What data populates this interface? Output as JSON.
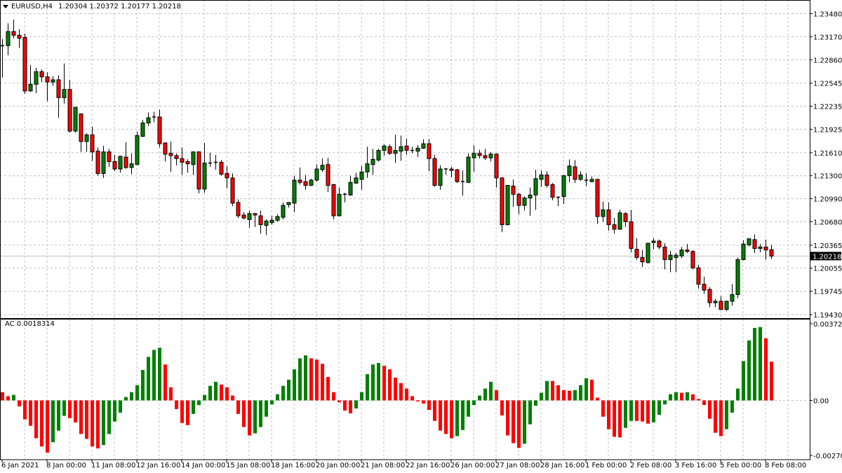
{
  "header": {
    "symbol": "EURUSD,H4",
    "ohlc": "1.20304 1.20372 1.20177 1.20218",
    "menu_icon": "triangle-down-icon"
  },
  "colors": {
    "bull": "#008000",
    "bear": "#ff0000",
    "grid": "#c0c0c0",
    "price_line": "#c0c0c0",
    "price_box": "#000000"
  },
  "chart_data": [
    {
      "type": "candlestick",
      "title": "EURUSD,H4",
      "timeframe": "H4",
      "last_price": "1.20218",
      "y_tick_labels": [
        "1.23480",
        "1.23170",
        "1.22860",
        "1.22545",
        "1.22235",
        "1.21925",
        "1.21610",
        "1.21300",
        "1.20990",
        "1.20680",
        "1.20365",
        "1.20055",
        "1.19745",
        "1.19430"
      ],
      "ylim": [
        1.1943,
        1.2348
      ],
      "x_tick_labels": [
        "6 Jan 2021",
        "8 Jan 00:00",
        "11 Jan 08:00",
        "12 Jan 16:00",
        "14 Jan 00:00",
        "15 Jan 08:00",
        "18 Jan 16:00",
        "20 Jan 00:00",
        "21 Jan 08:00",
        "22 Jan 16:00",
        "26 Jan 00:00",
        "27 Jan 08:00",
        "28 Jan 16:00",
        "1 Feb 00:00",
        "2 Feb 08:00",
        "3 Feb 16:00",
        "5 Feb 00:00",
        "8 Feb 08:00"
      ],
      "grid": true,
      "ohlc_fields": [
        "open",
        "high",
        "low",
        "close"
      ],
      "candles": [
        [
          1.2305,
          1.2314,
          1.2262,
          1.2305
        ],
        [
          1.2305,
          1.2335,
          1.2292,
          1.2324
        ],
        [
          1.2324,
          1.234,
          1.2315,
          1.2319
        ],
        [
          1.2319,
          1.2327,
          1.2302,
          1.2315
        ],
        [
          1.2316,
          1.2321,
          1.224,
          1.2244
        ],
        [
          1.2244,
          1.2279,
          1.2243,
          1.2253
        ],
        [
          1.2253,
          1.2275,
          1.2241,
          1.227
        ],
        [
          1.227,
          1.2273,
          1.2256,
          1.2263
        ],
        [
          1.2263,
          1.2269,
          1.223,
          1.2256
        ],
        [
          1.2256,
          1.2264,
          1.2251,
          1.2259
        ],
        [
          1.2259,
          1.2265,
          1.2208,
          1.2235
        ],
        [
          1.2235,
          1.2281,
          1.2227,
          1.2246
        ],
        [
          1.2246,
          1.2259,
          1.2188,
          1.219
        ],
        [
          1.219,
          1.2222,
          1.2188,
          1.2222
        ],
        [
          1.2213,
          1.2214,
          1.2162,
          1.2176
        ],
        [
          1.2176,
          1.2187,
          1.2162,
          1.2185
        ],
        [
          1.2185,
          1.2196,
          1.215,
          1.2162
        ],
        [
          1.2163,
          1.2168,
          1.213,
          1.2133
        ],
        [
          1.2133,
          1.217,
          1.2127,
          1.2162
        ],
        [
          1.2162,
          1.2166,
          1.2142,
          1.2149
        ],
        [
          1.2149,
          1.2158,
          1.2136,
          1.2139
        ],
        [
          1.2139,
          1.2157,
          1.2134,
          1.2156
        ],
        [
          1.2155,
          1.2175,
          1.2139,
          1.2141
        ],
        [
          1.2141,
          1.216,
          1.2132,
          1.2146
        ],
        [
          1.2145,
          1.2189,
          1.2145,
          1.2184
        ],
        [
          1.2183,
          1.2205,
          1.2182,
          1.2201
        ],
        [
          1.2201,
          1.2215,
          1.2197,
          1.2208
        ],
        [
          1.2208,
          1.2216,
          1.2202,
          1.2209
        ],
        [
          1.2209,
          1.2219,
          1.2168,
          1.2173
        ],
        [
          1.2174,
          1.2175,
          1.2149,
          1.2159
        ],
        [
          1.216,
          1.2176,
          1.2135,
          1.2157
        ],
        [
          1.2157,
          1.216,
          1.2144,
          1.2153
        ],
        [
          1.2153,
          1.2168,
          1.2131,
          1.2148
        ],
        [
          1.2149,
          1.2152,
          1.2134,
          1.2146
        ],
        [
          1.2145,
          1.2163,
          1.2131,
          1.2162
        ],
        [
          1.2162,
          1.2163,
          1.2106,
          1.2112
        ],
        [
          1.2112,
          1.2174,
          1.2107,
          1.2147
        ],
        [
          1.2147,
          1.2161,
          1.2142,
          1.2146
        ],
        [
          1.2148,
          1.2158,
          1.2138,
          1.2147
        ],
        [
          1.2148,
          1.2151,
          1.213,
          1.2132
        ],
        [
          1.2133,
          1.2143,
          1.2113,
          1.2127
        ],
        [
          1.2127,
          1.2133,
          1.2089,
          1.2093
        ],
        [
          1.2094,
          1.2098,
          1.2073,
          1.2076
        ],
        [
          1.2077,
          1.2081,
          1.2071,
          1.2073
        ],
        [
          1.2071,
          1.2083,
          1.206,
          1.2079
        ],
        [
          1.2079,
          1.208,
          1.2061,
          1.2077
        ],
        [
          1.2076,
          1.2083,
          1.2052,
          1.2064
        ],
        [
          1.2063,
          1.2071,
          1.205,
          1.2069
        ],
        [
          1.2067,
          1.2076,
          1.2064,
          1.207
        ],
        [
          1.207,
          1.2078,
          1.2068,
          1.2075
        ],
        [
          1.2074,
          1.2094,
          1.2071,
          1.209
        ],
        [
          1.2091,
          1.2094,
          1.2087,
          1.2094
        ],
        [
          1.2093,
          1.213,
          1.2081,
          1.2124
        ],
        [
          1.2124,
          1.2141,
          1.2118,
          1.2121
        ],
        [
          1.2122,
          1.2131,
          1.2111,
          1.2117
        ],
        [
          1.2117,
          1.2126,
          1.2116,
          1.2124
        ],
        [
          1.2124,
          1.2145,
          1.2122,
          1.2139
        ],
        [
          1.2138,
          1.2153,
          1.2135,
          1.2144
        ],
        [
          1.2145,
          1.2154,
          1.2108,
          1.2117
        ],
        [
          1.2118,
          1.2119,
          1.2071,
          1.2076
        ],
        [
          1.2076,
          1.2114,
          1.2075,
          1.2105
        ],
        [
          1.2105,
          1.2107,
          1.2094,
          1.2104
        ],
        [
          1.2104,
          1.213,
          1.2103,
          1.2121
        ],
        [
          1.212,
          1.2134,
          1.2119,
          1.2127
        ],
        [
          1.2125,
          1.2143,
          1.2111,
          1.2135
        ],
        [
          1.2135,
          1.2169,
          1.2127,
          1.2146
        ],
        [
          1.2145,
          1.2166,
          1.2131,
          1.2152
        ],
        [
          1.2151,
          1.2166,
          1.2149,
          1.2164
        ],
        [
          1.2164,
          1.2172,
          1.2157,
          1.217
        ],
        [
          1.2169,
          1.2172,
          1.2158,
          1.216
        ],
        [
          1.216,
          1.2185,
          1.2147,
          1.2164
        ],
        [
          1.2163,
          1.2184,
          1.215,
          1.2169
        ],
        [
          1.217,
          1.218,
          1.2158,
          1.2164
        ],
        [
          1.2164,
          1.2169,
          1.216,
          1.2163
        ],
        [
          1.2163,
          1.2171,
          1.2155,
          1.2167
        ],
        [
          1.2167,
          1.2179,
          1.2166,
          1.2173
        ],
        [
          1.2173,
          1.2179,
          1.2136,
          1.2153
        ],
        [
          1.2153,
          1.2158,
          1.2115,
          1.2117
        ],
        [
          1.2117,
          1.2144,
          1.2111,
          1.2139
        ],
        [
          1.2139,
          1.214,
          1.2131,
          1.2139
        ],
        [
          1.2139,
          1.2142,
          1.2128,
          1.2137
        ],
        [
          1.2138,
          1.2139,
          1.212,
          1.2122
        ],
        [
          1.2122,
          1.2137,
          1.2103,
          1.2122
        ],
        [
          1.2121,
          1.216,
          1.212,
          1.2155
        ],
        [
          1.2154,
          1.2171,
          1.2135,
          1.216
        ],
        [
          1.216,
          1.2165,
          1.2153,
          1.2157
        ],
        [
          1.2157,
          1.2166,
          1.2151,
          1.2154
        ],
        [
          1.2154,
          1.2162,
          1.2149,
          1.2159
        ],
        [
          1.2159,
          1.216,
          1.2114,
          1.2127
        ],
        [
          1.2127,
          1.2128,
          1.2054,
          1.2064
        ],
        [
          1.2064,
          1.2117,
          1.2063,
          1.2117
        ],
        [
          1.2116,
          1.2125,
          1.2088,
          1.2105
        ],
        [
          1.2105,
          1.2107,
          1.2078,
          1.209
        ],
        [
          1.209,
          1.2102,
          1.2083,
          1.21
        ],
        [
          1.21,
          1.2114,
          1.2076,
          1.2104
        ],
        [
          1.2104,
          1.2138,
          1.2084,
          1.2126
        ],
        [
          1.2125,
          1.2137,
          1.2115,
          1.2131
        ],
        [
          1.2131,
          1.2136,
          1.2114,
          1.2117
        ],
        [
          1.2118,
          1.212,
          1.2097,
          1.2101
        ],
        [
          1.2101,
          1.2102,
          1.2089,
          1.2101
        ],
        [
          1.2102,
          1.2131,
          1.2092,
          1.213
        ],
        [
          1.213,
          1.2152,
          1.2121,
          1.2143
        ],
        [
          1.2142,
          1.2151,
          1.212,
          1.2125
        ],
        [
          1.2125,
          1.2136,
          1.2123,
          1.2131
        ],
        [
          1.2124,
          1.2133,
          1.2116,
          1.2124
        ],
        [
          1.2122,
          1.2129,
          1.2121,
          1.2125
        ],
        [
          1.2125,
          1.2126,
          1.2065,
          1.2075
        ],
        [
          1.2075,
          1.2095,
          1.2068,
          1.2084
        ],
        [
          1.2084,
          1.2094,
          1.2056,
          1.2064
        ],
        [
          1.2064,
          1.2073,
          1.2052,
          1.2058
        ],
        [
          1.2058,
          1.2084,
          1.2057,
          1.208
        ],
        [
          1.2079,
          1.2081,
          1.2061,
          1.2068
        ],
        [
          1.2068,
          1.2084,
          1.2027,
          1.2032
        ],
        [
          1.2031,
          1.2046,
          1.2017,
          1.202
        ],
        [
          1.202,
          1.203,
          1.2007,
          1.2014
        ],
        [
          1.2013,
          1.204,
          1.2012,
          1.2039
        ],
        [
          1.204,
          1.2046,
          1.2031,
          1.2042
        ],
        [
          1.2042,
          1.2044,
          1.2031,
          1.2034
        ],
        [
          1.2034,
          1.2039,
          1.2004,
          1.2017
        ],
        [
          1.2017,
          1.2029,
          1.2,
          1.2023
        ],
        [
          1.202,
          1.2026,
          1.2,
          1.2023
        ],
        [
          1.2022,
          1.2034,
          1.2019,
          1.203
        ],
        [
          1.203,
          1.2038,
          1.2026,
          1.2028
        ],
        [
          1.2028,
          1.203,
          1.2004,
          1.2006
        ],
        [
          1.2006,
          1.201,
          1.1978,
          1.1984
        ],
        [
          1.1984,
          1.1994,
          1.1971,
          1.1976
        ],
        [
          1.1977,
          1.198,
          1.1953,
          1.1959
        ],
        [
          1.1959,
          1.1964,
          1.1953,
          1.1961
        ],
        [
          1.1961,
          1.1968,
          1.1949,
          1.195
        ],
        [
          1.195,
          1.1962,
          1.1948,
          1.1961
        ],
        [
          1.1961,
          1.1984,
          1.1955,
          1.197
        ],
        [
          1.197,
          1.202,
          1.1965,
          1.2017
        ],
        [
          1.2017,
          1.2043,
          1.2016,
          1.2038
        ],
        [
          1.2037,
          1.2046,
          1.2035,
          1.2045
        ],
        [
          1.2044,
          1.2051,
          1.2026,
          1.2032
        ],
        [
          1.2032,
          1.2038,
          1.2027,
          1.2034
        ],
        [
          1.2034,
          1.2044,
          1.2017,
          1.203
        ],
        [
          1.20304,
          1.20372,
          1.20177,
          1.20218
        ]
      ]
    },
    {
      "type": "bar",
      "title": "AC",
      "label": "AC 0.0018314",
      "y_tick_labels": [
        "0.0037268",
        "0.00",
        "-0.002705"
      ],
      "ylim": [
        -0.002705,
        0.0037268
      ],
      "color_rule": "green when value rises vs previous bar, red when it falls",
      "values": [
        0.00039,
        0.0002,
        0.00026,
        -0.00028,
        -0.0009,
        -0.0012,
        -0.00179,
        -0.00218,
        -0.00247,
        -0.00198,
        -0.00143,
        -0.00073,
        -0.00084,
        -0.00104,
        -0.00159,
        -0.00182,
        -0.00218,
        -0.00227,
        -0.00211,
        -0.00159,
        -0.001,
        -0.00058,
        0.00016,
        0.00039,
        0.00072,
        0.00144,
        0.00206,
        0.00239,
        0.00249,
        0.0017,
        0.00062,
        -0.00041,
        -0.00107,
        -0.00117,
        -0.00064,
        -0.00022,
        0.00026,
        0.00069,
        0.00088,
        0.00075,
        0.00062,
        0.00023,
        -0.00064,
        -0.00126,
        -0.00166,
        -0.00156,
        -0.00126,
        -0.00077,
        -0.00019,
        0.00029,
        0.00069,
        0.00098,
        0.00147,
        0.00199,
        0.00213,
        0.00199,
        0.00193,
        0.00173,
        0.00111,
        0.00039,
        -9e-05,
        -0.00048,
        -0.00061,
        -0.00038,
        0.00039,
        0.00124,
        0.0017,
        0.00177,
        0.00164,
        0.00147,
        0.00108,
        0.00082,
        0.00056,
        0.0002,
        -5e-05,
        -0.00015,
        -0.00045,
        -0.00097,
        -0.00143,
        -0.00159,
        -0.00179,
        -0.00169,
        -0.0014,
        -0.00077,
        -0.00022,
        0.00023,
        0.00056,
        0.00088,
        0.00049,
        -0.00071,
        -0.00166,
        -0.00202,
        -0.00225,
        -0.00205,
        -0.00113,
        -0.00025,
        0.00036,
        0.00092,
        0.00092,
        0.00072,
        0.00049,
        0.00046,
        0.00049,
        0.00072,
        0.00105,
        0.00098,
        0.00013,
        -0.00077,
        -0.00136,
        -0.00172,
        -0.00175,
        -0.0013,
        -0.00097,
        -0.00097,
        -0.001,
        -0.0011,
        -0.00104,
        -0.00068,
        -0.00019,
        0.00029,
        0.00039,
        0.00036,
        0.00039,
        0.00029,
        7e-05,
        -0.00022,
        -0.00087,
        -0.00153,
        -0.00169,
        -0.00136,
        -0.00058,
        0.00056,
        0.00186,
        0.00284,
        0.00343,
        0.00347,
        0.00294,
        0.0018314
      ]
    }
  ]
}
